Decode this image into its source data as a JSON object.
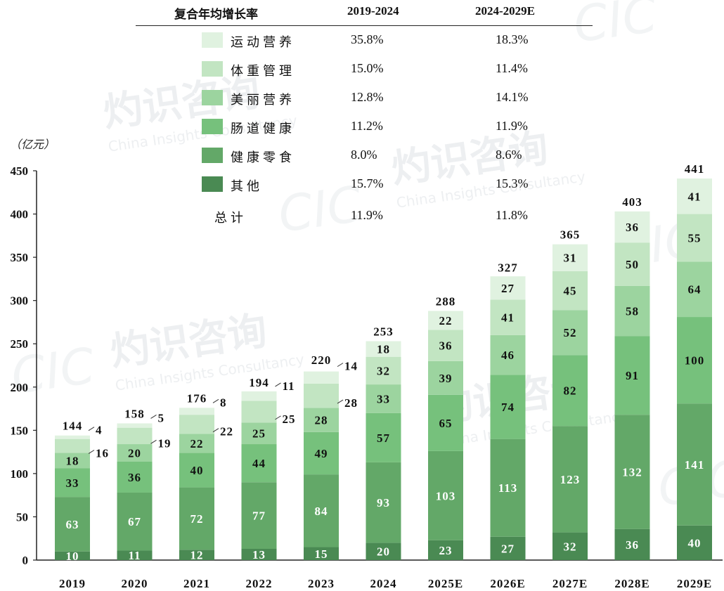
{
  "chart_data": {
    "type": "bar",
    "stacked": true,
    "ylabel": "（亿元）",
    "ylim": [
      0,
      450
    ],
    "yticks": [
      0,
      50,
      100,
      150,
      200,
      250,
      300,
      350,
      400,
      450
    ],
    "categories": [
      "2019",
      "2020",
      "2021",
      "2022",
      "2023",
      "2024",
      "2025E",
      "2026E",
      "2027E",
      "2028E",
      "2029E"
    ],
    "series": [
      {
        "name": "其他",
        "color": "#4a8a53",
        "values": [
          10,
          11,
          12,
          13,
          15,
          20,
          23,
          27,
          32,
          36,
          40
        ]
      },
      {
        "name": "健康零食",
        "color": "#63a868",
        "values": [
          63,
          67,
          72,
          77,
          84,
          93,
          103,
          113,
          123,
          132,
          141
        ]
      },
      {
        "name": "肠道健康",
        "color": "#76c17c",
        "values": [
          33,
          36,
          40,
          44,
          49,
          57,
          65,
          74,
          82,
          91,
          100
        ]
      },
      {
        "name": "美丽营养",
        "color": "#9cd49f",
        "values": [
          18,
          20,
          22,
          25,
          28,
          33,
          39,
          46,
          52,
          58,
          64
        ]
      },
      {
        "name": "体重管理",
        "color": "#c2e5c2",
        "values": [
          16,
          19,
          22,
          25,
          28,
          32,
          36,
          41,
          45,
          50,
          55
        ]
      },
      {
        "name": "运动营养",
        "color": "#e0f2e0",
        "values": [
          4,
          5,
          8,
          11,
          14,
          18,
          22,
          27,
          31,
          36,
          41
        ]
      }
    ],
    "totals": [
      144,
      158,
      176,
      194,
      220,
      253,
      288,
      327,
      365,
      403,
      441
    ]
  },
  "cagr_table": {
    "header_label": "复合年均增长率",
    "period1": "2019-2024",
    "period2": "2024-2029E",
    "rows": [
      {
        "name": "运动营养",
        "v1": "35.8%",
        "v2": "18.3%"
      },
      {
        "name": "体重管理",
        "v1": "15.0%",
        "v2": "11.4%"
      },
      {
        "name": "美丽营养",
        "v1": "12.8%",
        "v2": "14.1%"
      },
      {
        "name": "肠道健康",
        "v1": "11.2%",
        "v2": "11.9%"
      },
      {
        "name": "健康零食",
        "v1": "8.0%",
        "v2": "8.6%"
      },
      {
        "name": "其他",
        "v1": "15.7%",
        "v2": "15.3%"
      }
    ],
    "total_label": "总计",
    "total_v1": "11.9%",
    "total_v2": "11.8%"
  },
  "watermark": {
    "logo": "CIC",
    "cn": "灼识咨询",
    "en": "China Insights Consultancy"
  }
}
